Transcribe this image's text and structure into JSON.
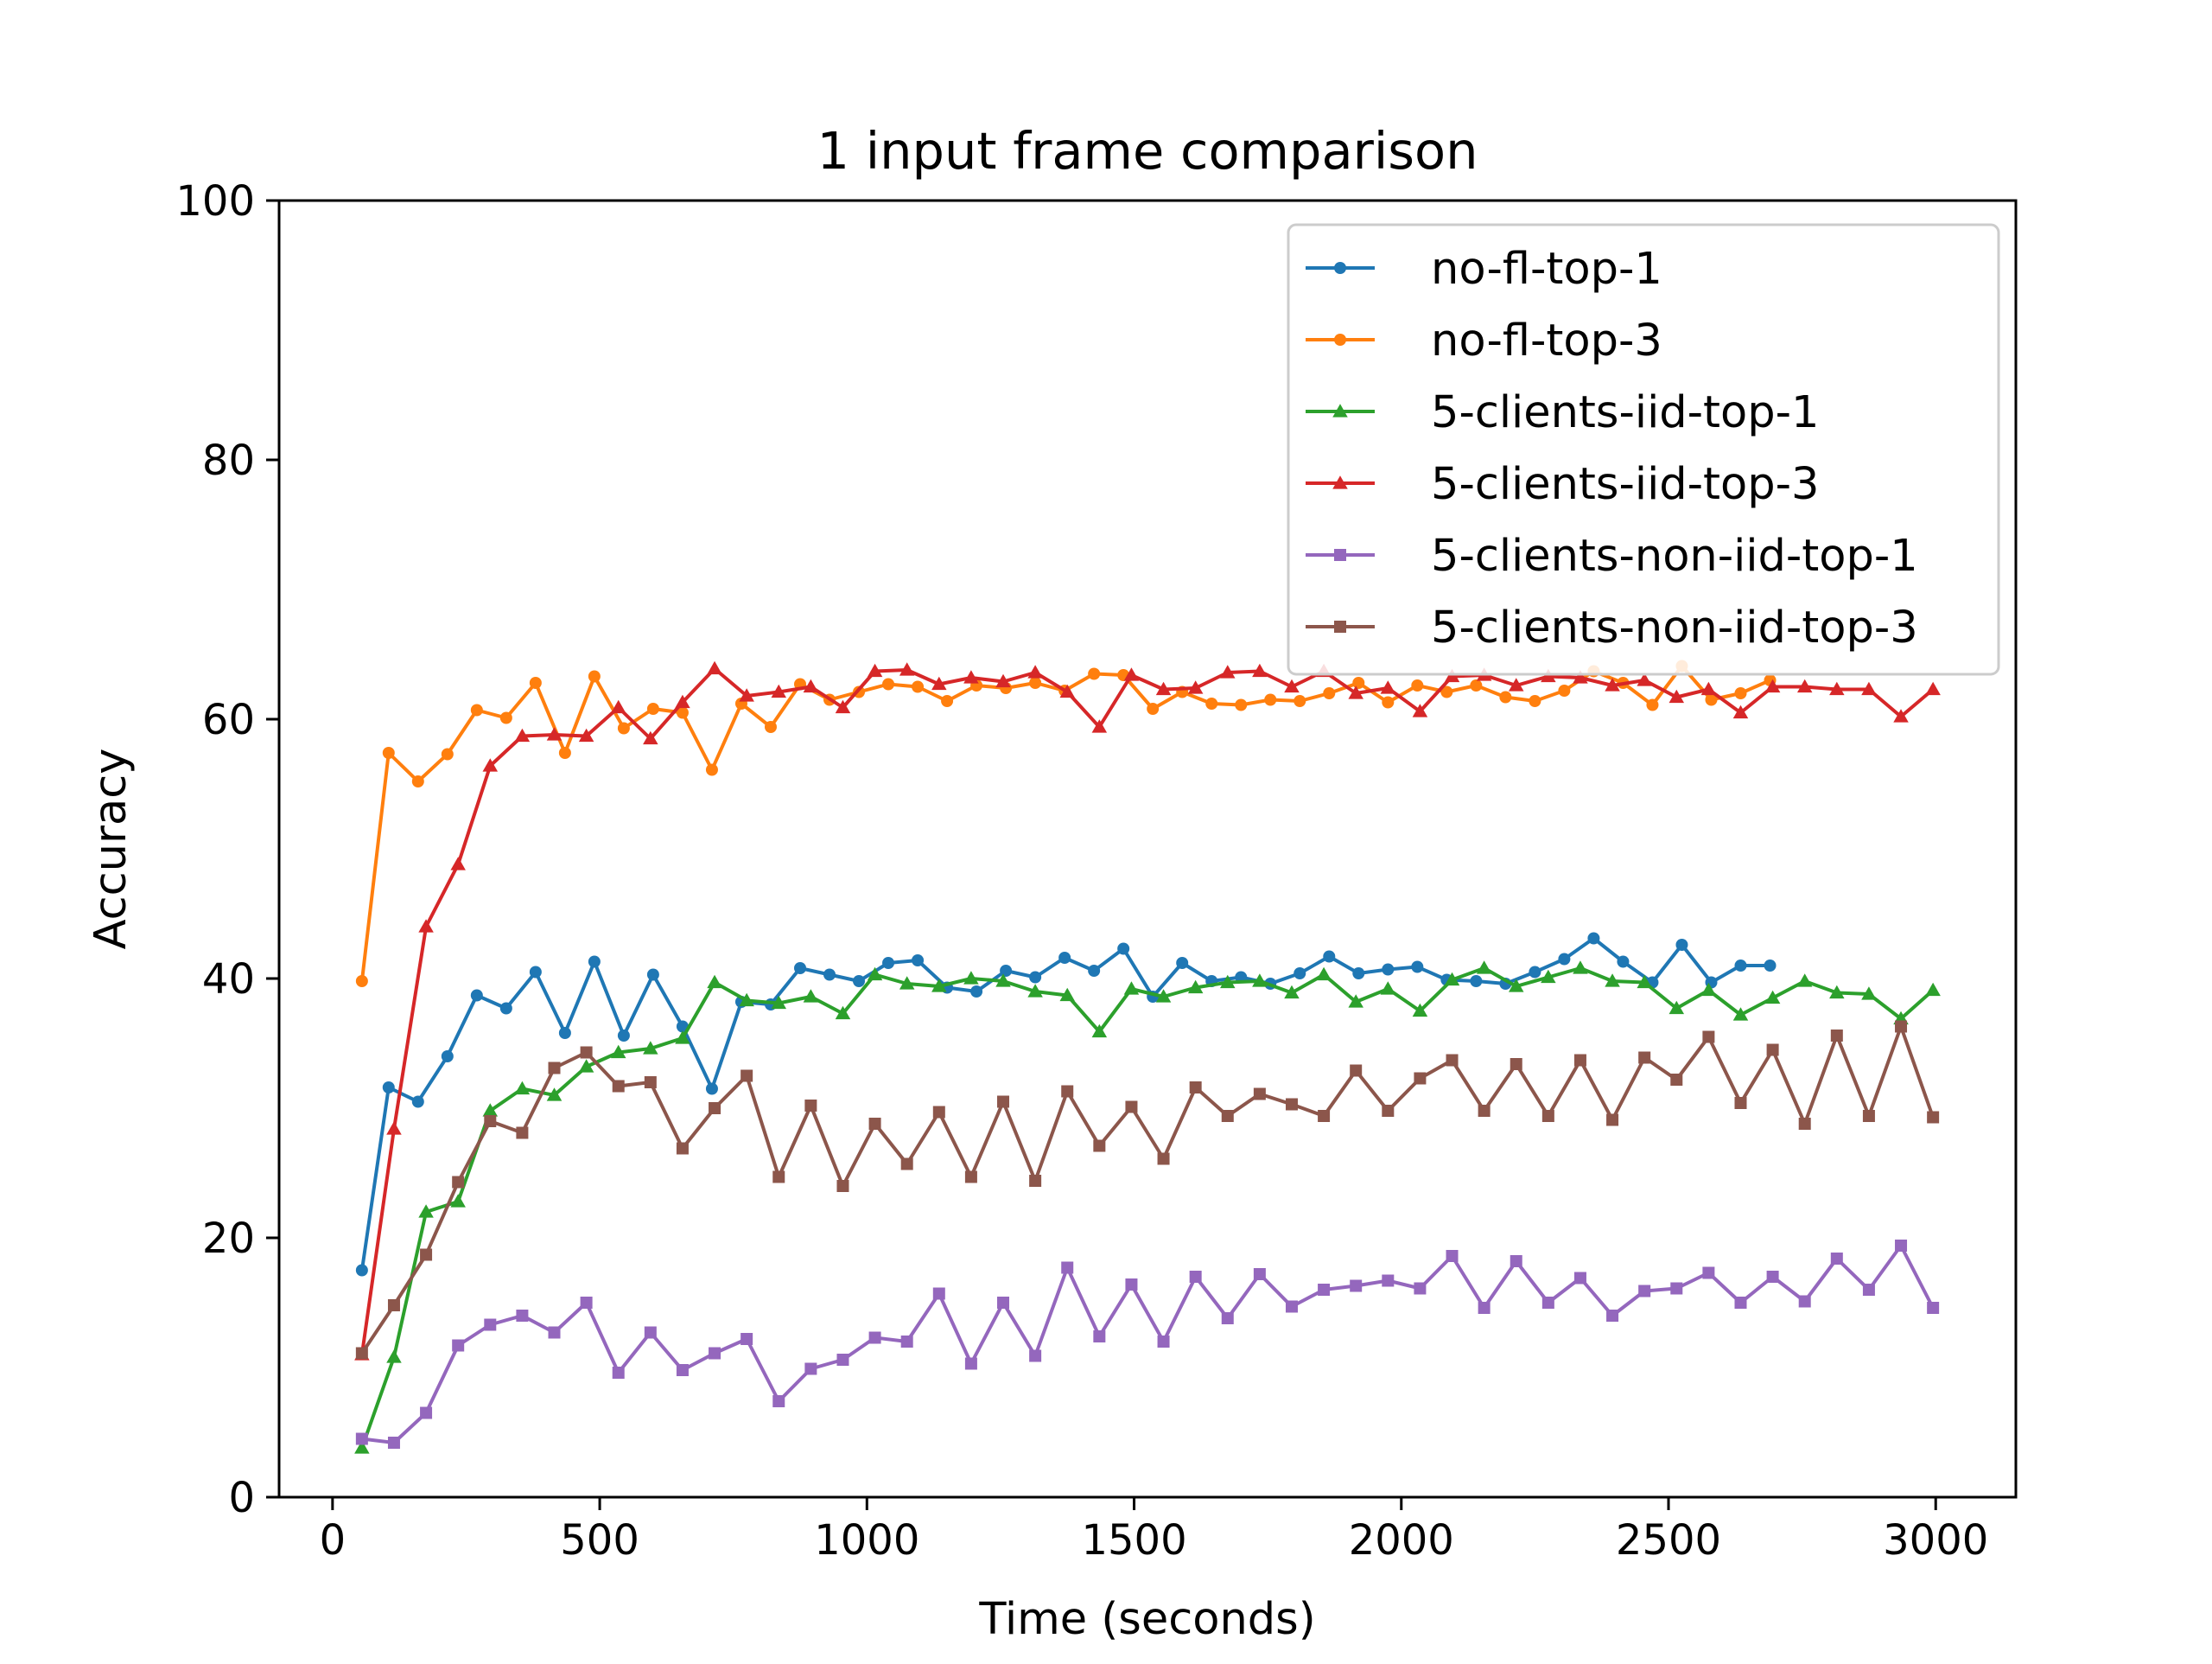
{
  "chart_data": {
    "type": "line",
    "title": "1 input frame comparison",
    "xlabel": "Time (seconds)",
    "ylabel": "Accuracy",
    "xlim": [
      -100,
      3150
    ],
    "ylim": [
      0,
      100
    ],
    "xticks": [
      0,
      500,
      1000,
      1500,
      2000,
      2500,
      3000
    ],
    "yticks": [
      0,
      20,
      40,
      60,
      80,
      100
    ],
    "grid": false,
    "legend_position": "top-right",
    "series": [
      {
        "name": "no-fl-top-1",
        "color": "#1f77b4",
        "marker": "circle",
        "x": [
          55,
          105,
          160,
          215,
          270,
          325,
          380,
          435,
          490,
          545,
          600,
          655,
          710,
          765,
          820,
          875,
          930,
          985,
          1040,
          1095,
          1150,
          1205,
          1260,
          1315,
          1370,
          1425,
          1480,
          1535,
          1590,
          1645,
          1700,
          1755,
          1810,
          1865,
          1920,
          1975,
          2030,
          2085,
          2140,
          2195,
          2250,
          2305,
          2360,
          2415,
          2470,
          2525,
          2580,
          2635,
          2690
        ],
        "y": [
          17.5,
          31.6,
          30.5,
          34.0,
          38.7,
          37.7,
          40.5,
          35.8,
          41.3,
          35.6,
          40.3,
          36.3,
          31.5,
          38.2,
          38.0,
          40.8,
          40.3,
          39.8,
          41.2,
          41.4,
          39.3,
          39.0,
          40.6,
          40.1,
          41.6,
          40.6,
          42.3,
          38.6,
          41.2,
          39.8,
          40.1,
          39.6,
          40.4,
          41.7,
          40.4,
          40.7,
          40.9,
          39.9,
          39.8,
          39.6,
          40.5,
          41.5,
          43.1,
          41.3,
          39.7,
          42.6,
          39.7,
          41.0,
          41.0
        ]
      },
      {
        "name": "no-fl-top-3",
        "color": "#ff7f0e",
        "marker": "circle",
        "x": [
          55,
          105,
          160,
          215,
          270,
          325,
          380,
          435,
          490,
          545,
          600,
          655,
          710,
          765,
          820,
          875,
          930,
          985,
          1040,
          1095,
          1150,
          1205,
          1260,
          1315,
          1370,
          1425,
          1480,
          1535,
          1590,
          1645,
          1700,
          1755,
          1810,
          1865,
          1920,
          1975,
          2030,
          2085,
          2140,
          2195,
          2250,
          2305,
          2360,
          2415,
          2470,
          2525,
          2580,
          2635,
          2690
        ],
        "y": [
          39.8,
          57.4,
          55.2,
          57.3,
          60.7,
          60.1,
          62.8,
          57.4,
          63.3,
          59.3,
          60.8,
          60.5,
          56.1,
          61.2,
          59.4,
          62.7,
          61.5,
          62.1,
          62.7,
          62.5,
          61.4,
          62.6,
          62.4,
          62.8,
          62.2,
          63.5,
          63.4,
          60.8,
          62.1,
          61.2,
          61.1,
          61.5,
          61.4,
          62.0,
          62.8,
          61.3,
          62.6,
          62.1,
          62.6,
          61.7,
          61.4,
          62.2,
          63.7,
          62.8,
          61.1,
          64.1,
          61.5,
          62.0,
          63.0
        ]
      },
      {
        "name": "5-clients-iid-top-1",
        "color": "#2ca02c",
        "marker": "triangle",
        "x": [
          55,
          115,
          175,
          235,
          295,
          355,
          415,
          475,
          535,
          595,
          655,
          715,
          775,
          835,
          895,
          955,
          1015,
          1075,
          1135,
          1195,
          1255,
          1315,
          1375,
          1435,
          1495,
          1555,
          1615,
          1675,
          1735,
          1795,
          1855,
          1915,
          1975,
          2035,
          2095,
          2155,
          2215,
          2275,
          2335,
          2395,
          2455,
          2515,
          2575,
          2635,
          2695,
          2755,
          2815,
          2875,
          2935,
          2995
        ],
        "y": [
          3.8,
          10.8,
          22.0,
          22.8,
          29.8,
          31.5,
          31.0,
          33.2,
          34.3,
          34.6,
          35.4,
          39.7,
          38.3,
          38.1,
          38.6,
          37.3,
          40.3,
          39.6,
          39.4,
          40.0,
          39.8,
          39.0,
          38.7,
          35.9,
          39.2,
          38.6,
          39.3,
          39.7,
          39.8,
          38.9,
          40.3,
          38.2,
          39.2,
          37.5,
          39.9,
          40.8,
          39.4,
          40.1,
          40.8,
          39.8,
          39.7,
          37.7,
          39.1,
          37.2,
          38.5,
          39.8,
          38.9,
          38.8,
          36.9,
          39.1
        ]
      },
      {
        "name": "5-clients-iid-top-3",
        "color": "#d62728",
        "marker": "triangle",
        "x": [
          55,
          115,
          175,
          235,
          295,
          355,
          415,
          475,
          535,
          595,
          655,
          715,
          775,
          835,
          895,
          955,
          1015,
          1075,
          1135,
          1195,
          1255,
          1315,
          1375,
          1435,
          1495,
          1555,
          1615,
          1675,
          1735,
          1795,
          1855,
          1915,
          1975,
          2035,
          2095,
          2155,
          2215,
          2275,
          2335,
          2395,
          2455,
          2515,
          2575,
          2635,
          2695,
          2755,
          2815,
          2875,
          2935,
          2995
        ],
        "y": [
          11.0,
          28.4,
          44.0,
          48.8,
          56.4,
          58.7,
          58.8,
          58.7,
          60.9,
          58.5,
          61.3,
          63.9,
          61.8,
          62.1,
          62.5,
          60.9,
          63.7,
          63.8,
          62.7,
          63.2,
          62.9,
          63.6,
          62.1,
          59.4,
          63.4,
          62.3,
          62.4,
          63.6,
          63.7,
          62.5,
          63.7,
          62.0,
          62.4,
          60.6,
          63.3,
          63.4,
          62.6,
          63.3,
          63.2,
          62.6,
          63.0,
          61.7,
          62.3,
          60.5,
          62.5,
          62.5,
          62.3,
          62.3,
          60.2,
          62.3
        ]
      },
      {
        "name": "5-clients-non-iid-top-1",
        "color": "#9467bd",
        "marker": "square",
        "x": [
          55,
          115,
          175,
          235,
          295,
          355,
          415,
          475,
          535,
          595,
          655,
          715,
          775,
          835,
          895,
          955,
          1015,
          1075,
          1135,
          1195,
          1255,
          1315,
          1375,
          1435,
          1495,
          1555,
          1615,
          1675,
          1735,
          1795,
          1855,
          1915,
          1975,
          2035,
          2095,
          2155,
          2215,
          2275,
          2335,
          2395,
          2455,
          2515,
          2575,
          2635,
          2695,
          2755,
          2815,
          2875,
          2935,
          2995
        ],
        "y": [
          4.5,
          4.2,
          6.5,
          11.7,
          13.3,
          14.0,
          12.7,
          15.0,
          9.6,
          12.7,
          9.8,
          11.1,
          12.2,
          7.4,
          9.9,
          10.6,
          12.3,
          12.0,
          15.7,
          10.3,
          15.0,
          10.9,
          17.7,
          12.4,
          16.4,
          12.0,
          17.0,
          13.8,
          17.2,
          14.7,
          16.0,
          16.3,
          16.7,
          16.1,
          18.6,
          14.6,
          18.2,
          15.0,
          16.9,
          14.0,
          15.9,
          16.1,
          17.3,
          15.0,
          17.0,
          15.1,
          18.4,
          16.0,
          19.4,
          14.6
        ]
      },
      {
        "name": "5-clients-non-iid-top-3",
        "color": "#8c564b",
        "marker": "square",
        "x": [
          55,
          115,
          175,
          235,
          295,
          355,
          415,
          475,
          535,
          595,
          655,
          715,
          775,
          835,
          895,
          955,
          1015,
          1075,
          1135,
          1195,
          1255,
          1315,
          1375,
          1435,
          1495,
          1555,
          1615,
          1675,
          1735,
          1795,
          1855,
          1915,
          1975,
          2035,
          2095,
          2155,
          2215,
          2275,
          2335,
          2395,
          2455,
          2515,
          2575,
          2635,
          2695,
          2755,
          2815,
          2875,
          2935,
          2995
        ],
        "y": [
          11.1,
          14.8,
          18.7,
          24.3,
          29.0,
          28.1,
          33.1,
          34.3,
          31.7,
          32.0,
          26.9,
          30.0,
          32.5,
          24.7,
          30.2,
          24.0,
          28.8,
          25.7,
          29.7,
          24.7,
          30.5,
          24.4,
          31.3,
          27.1,
          30.1,
          26.1,
          31.6,
          29.4,
          31.1,
          30.3,
          29.4,
          32.9,
          29.8,
          32.3,
          33.7,
          29.8,
          33.4,
          29.4,
          33.7,
          29.1,
          33.9,
          32.2,
          35.5,
          30.4,
          34.5,
          28.8,
          35.6,
          29.4,
          36.3,
          29.3
        ]
      }
    ]
  }
}
